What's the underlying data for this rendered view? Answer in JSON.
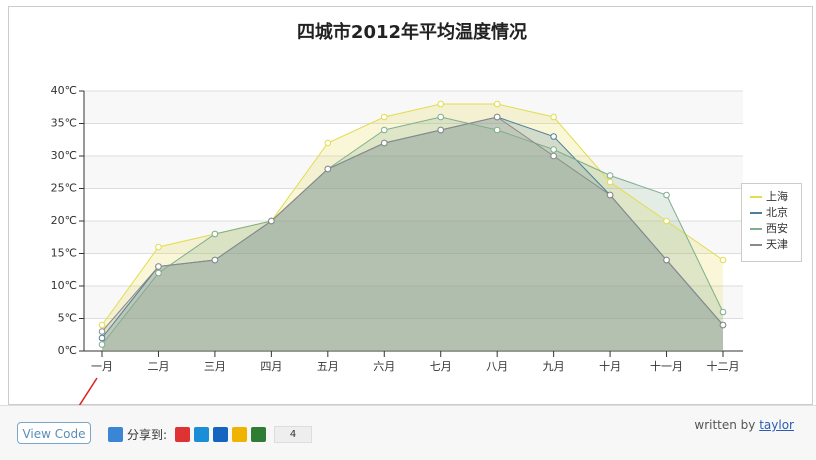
{
  "chart_data": {
    "type": "line",
    "title": "四城市2012年平均温度情况",
    "categories": [
      "一月",
      "二月",
      "三月",
      "四月",
      "五月",
      "六月",
      "七月",
      "八月",
      "九月",
      "十月",
      "十一月",
      "十二月"
    ],
    "series": [
      {
        "name": "上海",
        "color": "#e3dc4c",
        "values": [
          4,
          16,
          18,
          20,
          32,
          36,
          38,
          38,
          36,
          26,
          20,
          14
        ]
      },
      {
        "name": "北京",
        "color": "#4d7e99",
        "values": [
          2,
          13,
          14,
          20,
          28,
          32,
          34,
          36,
          33,
          24,
          14,
          4
        ]
      },
      {
        "name": "西安",
        "color": "#7fae8c",
        "values": [
          1,
          12,
          18,
          20,
          28,
          34,
          36,
          34,
          31,
          27,
          24,
          6
        ]
      },
      {
        "name": "天津",
        "color": "#8a8a8a",
        "values": [
          3,
          13,
          14,
          20,
          28,
          32,
          34,
          36,
          30,
          24,
          14,
          4
        ]
      }
    ],
    "ylim": [
      0,
      40
    ],
    "yticks": [
      {
        "value": 0,
        "label": "0℃"
      },
      {
        "value": 5,
        "label": "5℃"
      },
      {
        "value": 10,
        "label": "10℃"
      },
      {
        "value": 15,
        "label": "15℃"
      },
      {
        "value": 20,
        "label": "20℃"
      },
      {
        "value": 25,
        "label": "25℃"
      },
      {
        "value": 30,
        "label": "30℃"
      },
      {
        "value": 35,
        "label": "35℃"
      },
      {
        "value": 40,
        "label": "40℃"
      }
    ],
    "grid": true,
    "legend": "right"
  },
  "footer": {
    "button": "View Code",
    "share_label": "分享到:",
    "share_count": 4,
    "credit": "written by",
    "author": "taylor"
  }
}
